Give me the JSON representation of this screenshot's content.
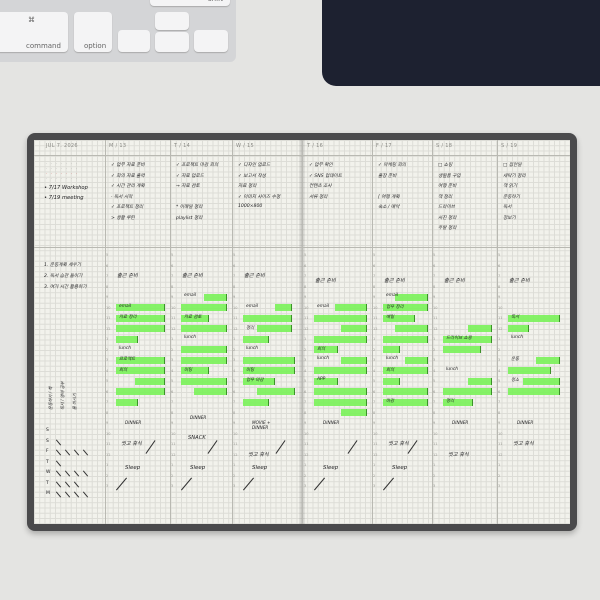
{
  "keyboard": {
    "keys": [
      "command",
      "option",
      "shift",
      "⌘"
    ]
  },
  "planner": {
    "week_label": "JUL 7. 2026",
    "days": [
      "M / 13",
      "T / 14",
      "W / 15",
      "T / 16",
      "F / 17",
      "S / 18",
      "S / 19"
    ],
    "events": [
      "• 7/17 Workshop",
      "• 7/19 meeting"
    ],
    "goals": [
      "1. 운동계획 세우기",
      "2. 독서 습관 들이기",
      "3. 여가 시간 활용하기"
    ],
    "hours": [
      "5",
      "6",
      "7",
      "8",
      "9",
      "10",
      "11",
      "12",
      "1",
      "2",
      "3",
      "4",
      "5",
      "6",
      "7",
      "8",
      "9",
      "10",
      "11",
      "12",
      "1",
      "2",
      "3"
    ],
    "todos": [
      [
        "✓ 업무 자료 준비",
        "✓ 회의 자료 출력",
        "✓ 시간 관리 계획",
        "· 독서 시작",
        "✓ 프로젝트 정리",
        "> 생활 루틴"
      ],
      [
        "✓ 프로젝트 마감 회의",
        "✓ 자료 업로드",
        "→ 자료 검토",
        "",
        "* 이메일 정리",
        "playlist 정리"
      ],
      [
        "✓ 디자인 업로드",
        "✓ 보고서 작성",
        "  자료 정리",
        "✓ 이미지 사이즈 수정",
        "  1000×800"
      ],
      [
        "✓ 업무 확인",
        "✓ SNS 업데이트",
        "  컨텐츠 조사",
        "  서류 정리"
      ],
      [
        "✓ 마케팅 회의",
        "  출장 준비",
        " ",
        "[ 여행 계획",
        "  숙소 / 예약"
      ],
      [
        "□ 쇼핑",
        "  생필품 구입",
        "  여행 준비",
        "  책 정리",
        "  드라이브",
        "  사진 정리",
        "  주말 정리"
      ],
      [
        "□ 집안일",
        "  세탁기 정리",
        "  책 읽기",
        "  운동하기",
        "  독서",
        "  장보기"
      ]
    ],
    "timeline": [
      {
        "wake": "출근 준비",
        "items": [
          [
            "email",
            5
          ],
          [
            "자료 정리",
            6
          ],
          [
            "lunch",
            9
          ],
          [
            "프로젝트",
            10
          ],
          [
            "회의",
            11
          ]
        ],
        "dinner": "DINNER",
        "night": "씻고 휴식",
        "sleep": "Sleep"
      },
      {
        "wake": "출근 준비",
        "items": [
          [
            "email",
            4
          ],
          [
            "자료 검토",
            6
          ],
          [
            "lunch",
            8
          ],
          [
            "미팅",
            11
          ]
        ],
        "dinner": "DINNER",
        "extra": "SNACK",
        "sleep": "Sleep"
      },
      {
        "wake": "출근 준비",
        "items": [
          [
            "email",
            5
          ],
          [
            "정리",
            7
          ],
          [
            "lunch",
            9
          ],
          [
            "미팅",
            11
          ],
          [
            "업무 마감",
            12
          ]
        ],
        "dinner": "MOVIE + DINNER",
        "night": "씻고 휴식",
        "sleep": "Sleep"
      },
      {
        "wake": "출근 준비",
        "items": [
          [
            "email",
            5
          ],
          [
            "회의",
            9
          ],
          [
            "lunch",
            10
          ],
          [
            "APP",
            12
          ]
        ],
        "dinner": "DINNER",
        "sleep": "Sleep"
      },
      {
        "wake": "출근 준비",
        "items": [
          [
            "email",
            4
          ],
          [
            "업무 정리",
            5
          ],
          [
            "메일",
            6
          ],
          [
            "lunch",
            10
          ],
          [
            "회의",
            11
          ],
          [
            "마감",
            14
          ]
        ],
        "night": "씻고 휴식",
        "sleep": "Sleep"
      },
      {
        "wake": "출근 준비",
        "items": [
          [
            "드라이브 쇼핑",
            8
          ],
          [
            "lunch",
            11
          ],
          [
            "정리",
            14
          ]
        ],
        "dinner": "DINNER",
        "night": "씻고 휴식"
      },
      {
        "wake": "출근 준비",
        "items": [
          [
            "독서",
            6
          ],
          [
            "lunch",
            8
          ],
          [
            "운동",
            10
          ],
          [
            "청소",
            12
          ]
        ],
        "dinner": "DINNER",
        "night": "씻고 휴식"
      }
    ],
    "habit_letters": [
      "S",
      "S",
      "F",
      "T",
      "W",
      "T",
      "M"
    ],
    "vertical_notes": [
      "운동하기 / 책",
      "독서 / 영어 공부",
      "물 마시기"
    ]
  },
  "colors": {
    "highlight": "#7cf25c",
    "cover": "#4a4a4c",
    "paper": "#f2f2ec",
    "mousepad": "#1d2130"
  }
}
